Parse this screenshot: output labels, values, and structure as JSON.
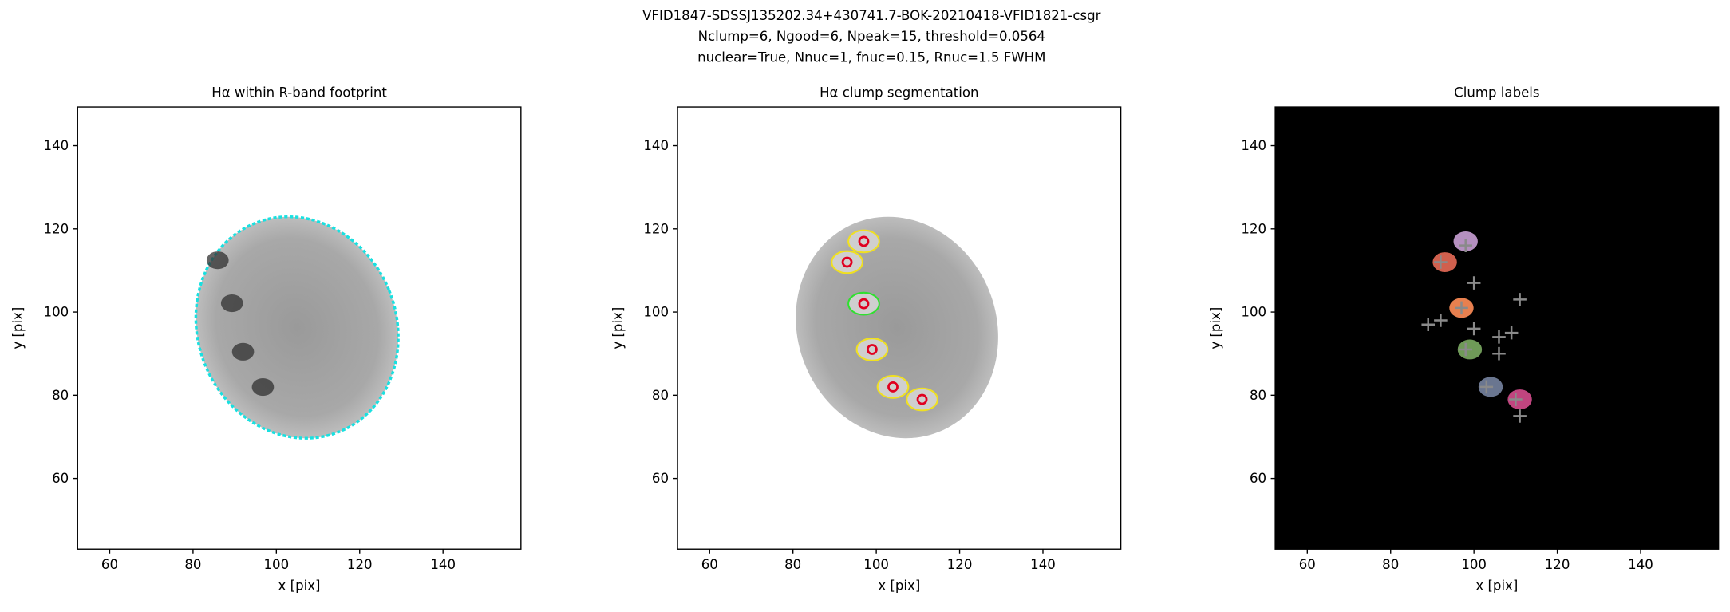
{
  "figure_title": [
    "VFID1847-SDSSJ135202.34+430741.7-BOK-20210418-VFID1821-csgr",
    "Nclump=6, Ngood=6, Npeak=15, threshold=0.0564",
    "nuclear=True, Nnuc=1, fnuc=0.15, Rnuc=1.5 FWHM"
  ],
  "chart_data": [
    {
      "type": "footprint",
      "title": "Hα within R-band footprint",
      "xlabel": "x [pix]",
      "ylabel": "y [pix]",
      "xlim": [
        52.3,
        158.7
      ],
      "ylim": [
        43,
        149.3
      ],
      "xticks": [
        60,
        80,
        100,
        120,
        140
      ],
      "yticks": [
        60,
        80,
        100,
        120,
        140
      ],
      "outline_color": "#19e0e0"
    },
    {
      "type": "segmentation",
      "title": "Hα clump segmentation",
      "xlabel": "x [pix]",
      "ylabel": "y [pix]",
      "xlim": [
        52.3,
        158.7
      ],
      "ylim": [
        43,
        149.3
      ],
      "xticks": [
        60,
        80,
        100,
        120,
        140
      ],
      "yticks": [
        60,
        80,
        100,
        120,
        140
      ],
      "contour_color": "#f0e020",
      "nucleus_color": "#30e030",
      "clumps": {
        "x": [
          97,
          93,
          97,
          99,
          104,
          111
        ],
        "y": [
          117,
          112,
          102,
          91,
          82,
          79
        ],
        "color": "#e00020"
      }
    },
    {
      "type": "labels",
      "title": "Clump labels",
      "xlabel": "x [pix]",
      "ylabel": "y [pix]",
      "xlim": [
        52.3,
        158.7
      ],
      "ylim": [
        43,
        149.3
      ],
      "xticks": [
        60,
        80,
        100,
        120,
        140
      ],
      "yticks": [
        60,
        80,
        100,
        120,
        140
      ],
      "background": "#000000",
      "clumps": {
        "x": [
          98,
          93,
          97,
          99,
          104,
          111
        ],
        "y": [
          117,
          112,
          101,
          91,
          82,
          79
        ],
        "colors": [
          "#b590c0",
          "#d0604e",
          "#e8804f",
          "#6f9a58",
          "#6a7690",
          "#c0457f"
        ]
      },
      "peaks": {
        "x": [
          98,
          92,
          100,
          97,
          89,
          92,
          100,
          106,
          109,
          106,
          98,
          103,
          111,
          111,
          110
        ],
        "y": [
          116,
          112,
          107,
          101,
          97,
          98,
          96,
          94,
          95,
          90,
          91,
          82,
          103,
          75,
          79
        ],
        "color": "#8a8a8a"
      }
    }
  ]
}
